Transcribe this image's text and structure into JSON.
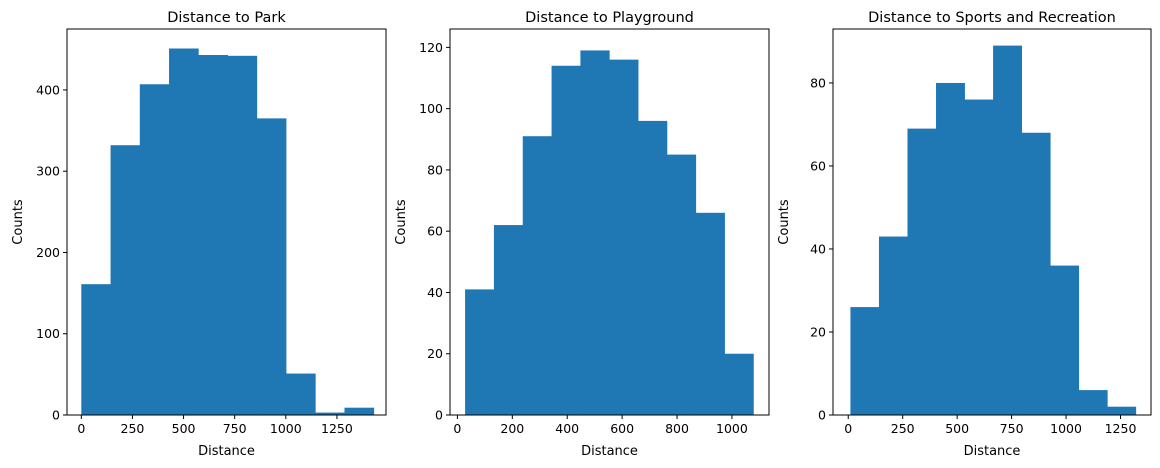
{
  "chart_data": [
    {
      "type": "bar",
      "title": "Distance to Park",
      "xlabel": "Distance",
      "ylabel": "Counts",
      "xlim": [
        -70,
        1490
      ],
      "ylim": [
        0,
        475
      ],
      "xticks": [
        0,
        250,
        500,
        750,
        1000,
        1250
      ],
      "yticks": [
        0,
        100,
        200,
        300,
        400
      ],
      "bin_edges": [
        0,
        143,
        286,
        429,
        572,
        715,
        858,
        1001,
        1144,
        1287,
        1430
      ],
      "values": [
        161,
        332,
        407,
        451,
        443,
        442,
        365,
        51,
        3,
        9
      ],
      "color": "#1f77b4",
      "grid": false,
      "legend": null
    },
    {
      "type": "bar",
      "title": "Distance to Playground",
      "xlabel": "Distance",
      "ylabel": "Counts",
      "xlim": [
        -27,
        1135
      ],
      "ylim": [
        0,
        126
      ],
      "xticks": [
        0,
        200,
        400,
        600,
        800,
        1000
      ],
      "yticks": [
        0,
        20,
        40,
        60,
        80,
        100,
        120
      ],
      "bin_edges": [
        28,
        133,
        238,
        343,
        448,
        553,
        658,
        763,
        868,
        973,
        1078
      ],
      "values": [
        41,
        62,
        91,
        114,
        119,
        116,
        96,
        85,
        66,
        20
      ],
      "color": "#1f77b4",
      "grid": false,
      "legend": null
    },
    {
      "type": "bar",
      "title": "Distance to Sports and Recreation",
      "xlabel": "Distance",
      "ylabel": "Counts",
      "xlim": [
        -70,
        1390
      ],
      "ylim": [
        0,
        93
      ],
      "xticks": [
        0,
        250,
        500,
        750,
        1000,
        1250
      ],
      "yticks": [
        0,
        20,
        40,
        60,
        80
      ],
      "bin_edges": [
        10,
        141,
        272,
        403,
        534,
        665,
        796,
        927,
        1058,
        1189,
        1320
      ],
      "values": [
        26,
        43,
        69,
        80,
        76,
        89,
        68,
        36,
        6,
        2
      ],
      "color": "#1f77b4",
      "grid": false,
      "legend": null
    }
  ]
}
